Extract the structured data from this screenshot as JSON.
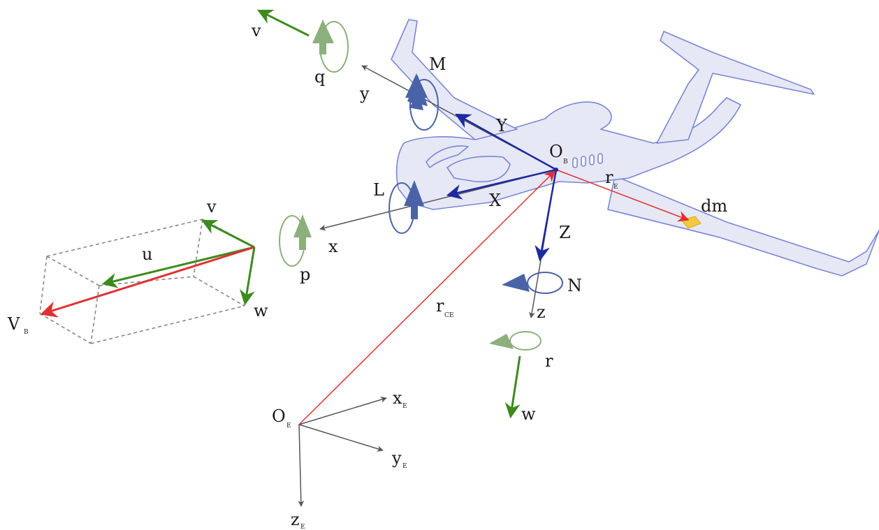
{
  "colors": {
    "body_axes": "#555555",
    "forces": "#1f2aa0",
    "moments": "#4a63a8",
    "velocity": "#3d8a1e",
    "rates": "#8bb07c",
    "position": "#e03030",
    "aircraft_fill": "#e6e8f6",
    "aircraft_stroke": "#7a86d4",
    "mass_element": "#f5c842",
    "box_edges": "#888888"
  },
  "labels": {
    "v_top": "v",
    "q": "q",
    "M": "M",
    "y": "y",
    "Y": "Y",
    "O_B": "O",
    "O_B_sub": "B",
    "r_E": "r",
    "r_E_sub": "E",
    "L": "L",
    "X": "X",
    "dm": "dm",
    "x": "x",
    "Z": "Z",
    "N": "N",
    "z": "z",
    "r_CE": "r",
    "r_CE_sub": "CE",
    "p": "p",
    "r_rate": "r",
    "w_lower": "w",
    "box_v": "v",
    "box_u": "u",
    "box_w": "w",
    "V_B": "V",
    "V_B_sub": "B",
    "O_E": "O",
    "O_E_sub": "E",
    "x_E": "x",
    "x_E_sub": "E",
    "y_E": "y",
    "y_E_sub": "E",
    "z_E": "z",
    "z_E_sub": "E"
  },
  "icons": {
    "aircraft": "business-jet-silhouette-icon",
    "moment": "curved-rotation-arrow-icon",
    "mass_element": "mass-element-icon"
  }
}
